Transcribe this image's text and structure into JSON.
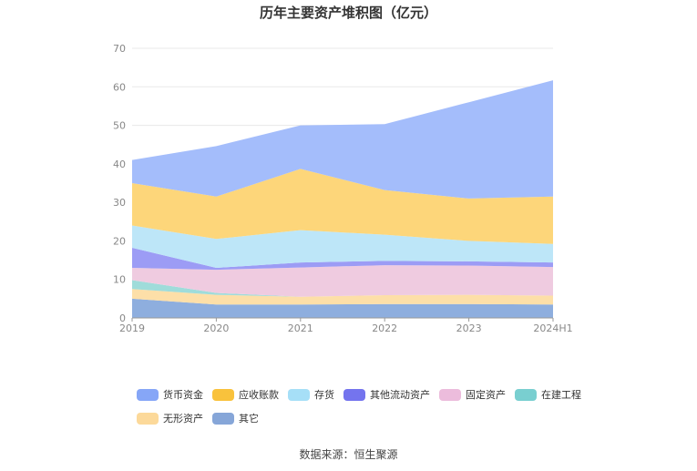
{
  "chart_data": {
    "type": "area",
    "stacked": true,
    "title": "历年主要资产堆积图（亿元）",
    "categories": [
      "2019",
      "2020",
      "2021",
      "2022",
      "2023",
      "2024H1"
    ],
    "y_ticks": [
      "0",
      "10",
      "20",
      "30",
      "40",
      "50",
      "60",
      "70"
    ],
    "ylim": [
      0,
      70
    ],
    "grid": true,
    "legend_position": "bottom",
    "series": [
      {
        "name": "其它",
        "color": "#8eaede",
        "values": [
          5.0,
          3.5,
          3.5,
          3.6,
          3.6,
          3.5
        ]
      },
      {
        "name": "无形资产",
        "color": "#fddfa8",
        "values": [
          2.5,
          2.5,
          2.0,
          2.3,
          2.4,
          2.3
        ]
      },
      {
        "name": "在建工程",
        "color": "#9fdcda",
        "values": [
          2.3,
          0.5,
          0.0,
          0.0,
          0.0,
          0.0
        ]
      },
      {
        "name": "固定资产",
        "color": "#efcbe0",
        "values": [
          3.2,
          6.0,
          7.6,
          7.8,
          7.6,
          7.4
        ]
      },
      {
        "name": "其他流动资产",
        "color": "#9c9cf5",
        "values": [
          5.2,
          0.5,
          1.3,
          1.1,
          1.1,
          1.2
        ]
      },
      {
        "name": "存货",
        "color": "#bde6f8",
        "values": [
          5.8,
          7.5,
          8.4,
          6.8,
          5.3,
          4.8
        ]
      },
      {
        "name": "应收账款",
        "color": "#fdd67a",
        "values": [
          11.0,
          11.0,
          15.9,
          11.6,
          11.0,
          12.3
        ]
      },
      {
        "name": "货币资金",
        "color": "#a4bdfb",
        "values": [
          6.0,
          13.1,
          11.3,
          17.1,
          25.0,
          30.2
        ]
      }
    ],
    "legend": [
      {
        "label": "货币资金",
        "color": "#86a6f7"
      },
      {
        "label": "应收账款",
        "color": "#f9c23c"
      },
      {
        "label": "存货",
        "color": "#a6dff7"
      },
      {
        "label": "其他流动资产",
        "color": "#7474ee"
      },
      {
        "label": "固定资产",
        "color": "#ecbcdc"
      },
      {
        "label": "在建工程",
        "color": "#79cfd0"
      },
      {
        "label": "无形资产",
        "color": "#fcd99a"
      },
      {
        "label": "其它",
        "color": "#86a6d8"
      }
    ],
    "source": "数据来源：恒生聚源"
  }
}
